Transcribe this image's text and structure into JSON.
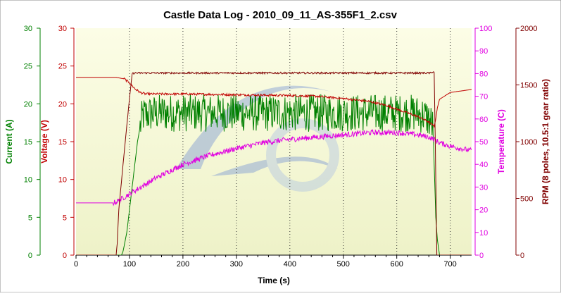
{
  "chart_data": {
    "type": "line",
    "title": "Castle Data Log - 2010_09_11_AS-355F1_2.csv",
    "xlabel": "Time (s)",
    "xlim": [
      0,
      740
    ],
    "xticks": [
      0,
      100,
      200,
      300,
      400,
      500,
      600,
      700
    ],
    "grid": "vertical dotted",
    "axes": [
      {
        "id": "current",
        "label": "Current (A)",
        "side": "left",
        "color": "#008000",
        "ylim": [
          0,
          30
        ],
        "ticks": [
          0,
          5,
          10,
          15,
          20,
          25,
          30
        ]
      },
      {
        "id": "voltage",
        "label": "Voltage (V)",
        "side": "left",
        "color": "#c00000",
        "ylim": [
          0,
          30
        ],
        "ticks": [
          0,
          5,
          10,
          15,
          20,
          25,
          30
        ]
      },
      {
        "id": "temperature",
        "label": "Temperature (C)",
        "side": "right",
        "color": "#e000e0",
        "ylim": [
          0,
          100
        ],
        "ticks": [
          0,
          10,
          20,
          30,
          40,
          50,
          60,
          70,
          80,
          90,
          100
        ]
      },
      {
        "id": "rpm",
        "label": "RPM (8 poles, 10.5:1 gear ratio)",
        "side": "right",
        "color": "#800000",
        "ylim": [
          0,
          2000
        ],
        "ticks": [
          0,
          500,
          1000,
          1500,
          2000
        ]
      }
    ],
    "series": [
      {
        "axis": "current",
        "color": "#008000",
        "x": [
          0,
          85,
          88,
          95,
          100,
          105,
          110,
          115,
          120,
          125,
          150,
          200,
          250,
          300,
          350,
          400,
          450,
          500,
          550,
          600,
          630,
          650,
          660,
          668,
          670,
          673,
          676,
          680,
          740
        ],
        "y": [
          0,
          0,
          0.5,
          3,
          6,
          9,
          12,
          15,
          17,
          18.5,
          18.8,
          18.8,
          18.8,
          18.8,
          18.8,
          18.8,
          18.8,
          18.8,
          18.8,
          18.8,
          18.8,
          18.5,
          18,
          17,
          12,
          5,
          2,
          0,
          0
        ]
      },
      {
        "axis": "voltage",
        "color": "#c00000",
        "x": [
          0,
          75,
          90,
          100,
          110,
          120,
          130,
          150,
          200,
          300,
          400,
          450,
          500,
          550,
          580,
          600,
          620,
          640,
          660,
          670,
          673,
          676,
          680,
          700,
          740
        ],
        "y": [
          23.5,
          23.5,
          23.3,
          22.8,
          22.0,
          21.5,
          21.3,
          21.3,
          21.3,
          21.2,
          21.1,
          21.0,
          20.7,
          20.3,
          19.8,
          19.3,
          18.8,
          18.3,
          17.6,
          17.0,
          18.0,
          19.5,
          20.6,
          21.5,
          21.9
        ]
      },
      {
        "axis": "temperature",
        "color": "#e000e0",
        "x": [
          0,
          50,
          70,
          80,
          100,
          150,
          200,
          250,
          300,
          350,
          400,
          450,
          500,
          550,
          600,
          640,
          660,
          670,
          680,
          700,
          720,
          740
        ],
        "y": [
          23,
          23,
          23,
          24,
          27,
          34,
          40,
          44,
          47,
          49.5,
          51,
          52,
          53,
          54,
          54,
          53,
          52,
          51,
          49.5,
          48,
          47,
          46
        ]
      },
      {
        "axis": "rpm",
        "color": "#800000",
        "x": [
          0,
          75,
          77,
          80,
          90,
          100,
          105,
          110,
          120,
          200,
          300,
          400,
          500,
          600,
          650,
          665,
          668,
          670,
          672,
          675,
          678,
          740
        ],
        "y": [
          0,
          0,
          100,
          400,
          900,
          1380,
          1600,
          1605,
          1605,
          1605,
          1605,
          1605,
          1605,
          1605,
          1605,
          1605,
          1620,
          1610,
          1000,
          0,
          0,
          0
        ]
      }
    ],
    "noise": [
      {
        "series": 0,
        "amplitude": 2.5,
        "x_start": 120,
        "x_end": 668
      },
      {
        "series": 1,
        "amplitude": 0.15,
        "x_start": 90,
        "x_end": 670
      },
      {
        "series": 2,
        "amplitude": 1.2,
        "x_start": 70,
        "x_end": 740
      },
      {
        "series": 3,
        "amplitude": 8,
        "x_start": 105,
        "x_end": 670
      }
    ]
  }
}
